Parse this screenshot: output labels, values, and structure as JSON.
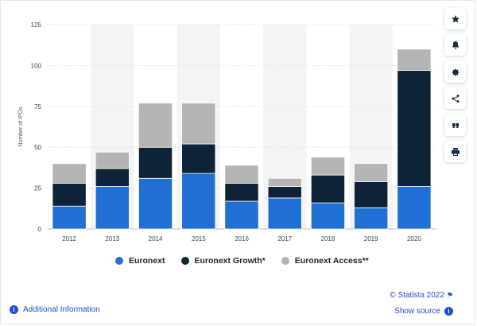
{
  "chart_data": {
    "type": "bar",
    "stacked": true,
    "categories": [
      "2012",
      "2013",
      "2014",
      "2015",
      "2016",
      "2017",
      "2018",
      "2019",
      "2020"
    ],
    "series": [
      {
        "name": "Euronext",
        "color": "#1f6fd4",
        "values": [
          14,
          26,
          31,
          34,
          17,
          19,
          16,
          13,
          26
        ]
      },
      {
        "name": "Euronext Growth*",
        "color": "#0f2338",
        "values": [
          14,
          11,
          19,
          18,
          11,
          7,
          17,
          16,
          71
        ]
      },
      {
        "name": "Euronext Access**",
        "color": "#b4b4b4",
        "values": [
          12,
          10,
          27,
          25,
          11,
          5,
          11,
          11,
          13
        ]
      }
    ],
    "ylabel": "Number of IPOs",
    "xlabel": "",
    "ylim": [
      0,
      125
    ],
    "yticks": [
      0,
      25,
      50,
      75,
      100,
      125
    ],
    "grid": true,
    "legend_position": "bottom"
  },
  "legend": {
    "items": [
      {
        "label": "Euronext",
        "color": "#1f6fd4"
      },
      {
        "label": "Euronext Growth*",
        "color": "#0f2338"
      },
      {
        "label": "Euronext Access**",
        "color": "#b4b4b4"
      }
    ]
  },
  "sidebar": {
    "buttons": [
      {
        "icon": "star-icon",
        "name": "favorite-button"
      },
      {
        "icon": "bell-icon",
        "name": "notification-button"
      },
      {
        "icon": "gear-icon",
        "name": "settings-button"
      },
      {
        "icon": "share-icon",
        "name": "share-button"
      },
      {
        "icon": "quote-icon",
        "name": "cite-button"
      },
      {
        "icon": "print-icon",
        "name": "print-button"
      }
    ]
  },
  "footer": {
    "additional_info": "Additional Information",
    "credit": "© Statista 2022",
    "show_source": "Show source",
    "info_glyph": "i"
  }
}
